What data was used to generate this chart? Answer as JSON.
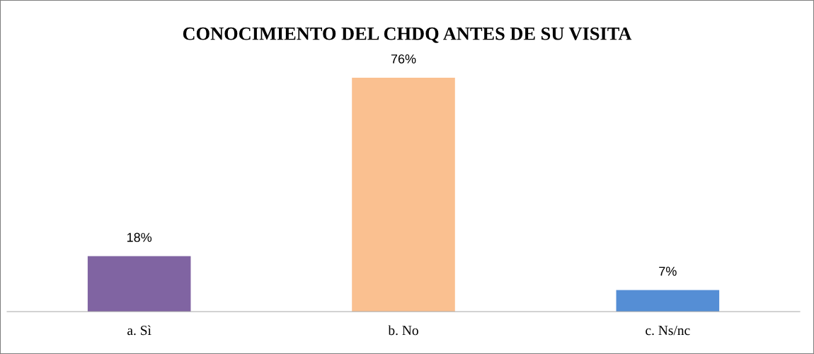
{
  "chart_data": {
    "type": "bar",
    "title": "CONOCIMIENTO DEL CHDQ ANTES DE SU VISITA",
    "categories": [
      "a. Sì",
      "b. No",
      "c. Ns/nc"
    ],
    "values": [
      18,
      76,
      7
    ],
    "colors": [
      "#8064a2",
      "#fac090",
      "#558ed5"
    ],
    "value_labels": [
      "18%",
      "76%",
      "7%"
    ],
    "grid": false,
    "legend": false
  }
}
